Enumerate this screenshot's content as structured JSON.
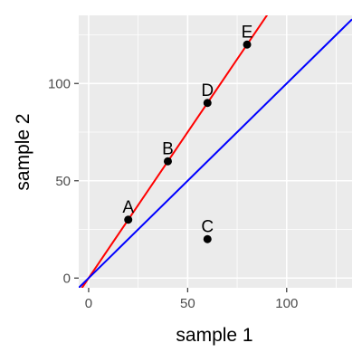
{
  "chart_data": {
    "type": "scatter",
    "title": "",
    "xlabel": "sample 1",
    "ylabel": "sample 2",
    "xlim": [
      -5,
      133
    ],
    "ylim": [
      -5,
      135
    ],
    "x_ticks": [
      0,
      50,
      100
    ],
    "y_ticks": [
      0,
      50,
      100
    ],
    "x_minor_ticks": [
      25,
      75,
      125
    ],
    "y_minor_ticks": [
      25,
      75,
      125
    ],
    "grid": true,
    "panel_background": "#EBEBEB",
    "grid_color": "#FFFFFF",
    "points": [
      {
        "label": "A",
        "x": 20,
        "y": 30
      },
      {
        "label": "B",
        "x": 40,
        "y": 60
      },
      {
        "label": "C",
        "x": 60,
        "y": 20
      },
      {
        "label": "D",
        "x": 60,
        "y": 90
      },
      {
        "label": "E",
        "x": 80,
        "y": 120
      }
    ],
    "point_color": "#000000",
    "lines": [
      {
        "slope": 1.5,
        "intercept": 0,
        "color": "#FF0000"
      },
      {
        "slope": 1.0,
        "intercept": 0,
        "color": "#0000FF"
      }
    ]
  }
}
